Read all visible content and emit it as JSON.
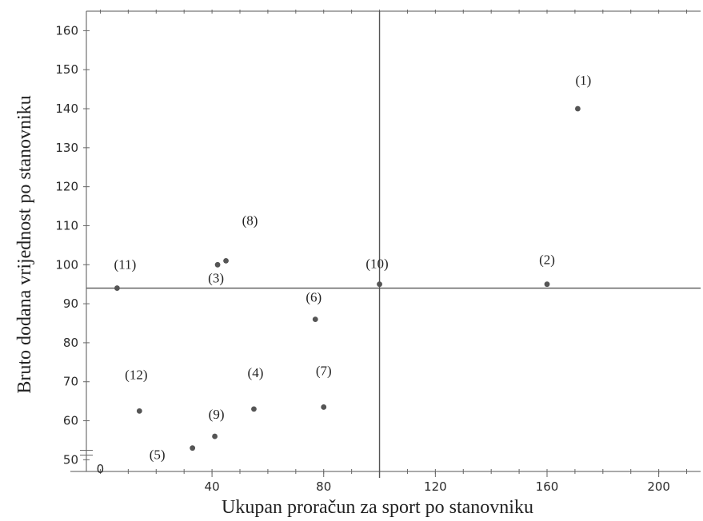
{
  "chart_data": {
    "type": "scatter",
    "xlabel": "Ukupan proračun za sport po stanovniku",
    "ylabel": "Bruto dodana vrijednost po stanovniku",
    "xlim": [
      -5,
      215
    ],
    "ylim": [
      47,
      165
    ],
    "x_ticks": [
      40,
      80,
      120,
      160,
      200
    ],
    "y_ticks": [
      50,
      60,
      70,
      80,
      90,
      100,
      110,
      120,
      130,
      140,
      150,
      160
    ],
    "origin_label": "0",
    "y_axis_break": true,
    "reference_lines": {
      "x": 100,
      "y": 94
    },
    "grid": false,
    "points": [
      {
        "label": "(1)",
        "x": 171,
        "y": 140
      },
      {
        "label": "(2)",
        "x": 160,
        "y": 95
      },
      {
        "label": "(3)",
        "x": 42,
        "y": 100
      },
      {
        "label": "(4)",
        "x": 55,
        "y": 63
      },
      {
        "label": "(5)",
        "x": 33,
        "y": 53
      },
      {
        "label": "(6)",
        "x": 77,
        "y": 86
      },
      {
        "label": "(7)",
        "x": 80,
        "y": 63.5
      },
      {
        "label": "(8)",
        "x": 45,
        "y": 101
      },
      {
        "label": "(9)",
        "x": 41,
        "y": 56
      },
      {
        "label": "(10)",
        "x": 100,
        "y": 95
      },
      {
        "label": "(11)",
        "x": 6,
        "y": 94
      },
      {
        "label": "(12)",
        "x": 14,
        "y": 62.5
      }
    ]
  }
}
